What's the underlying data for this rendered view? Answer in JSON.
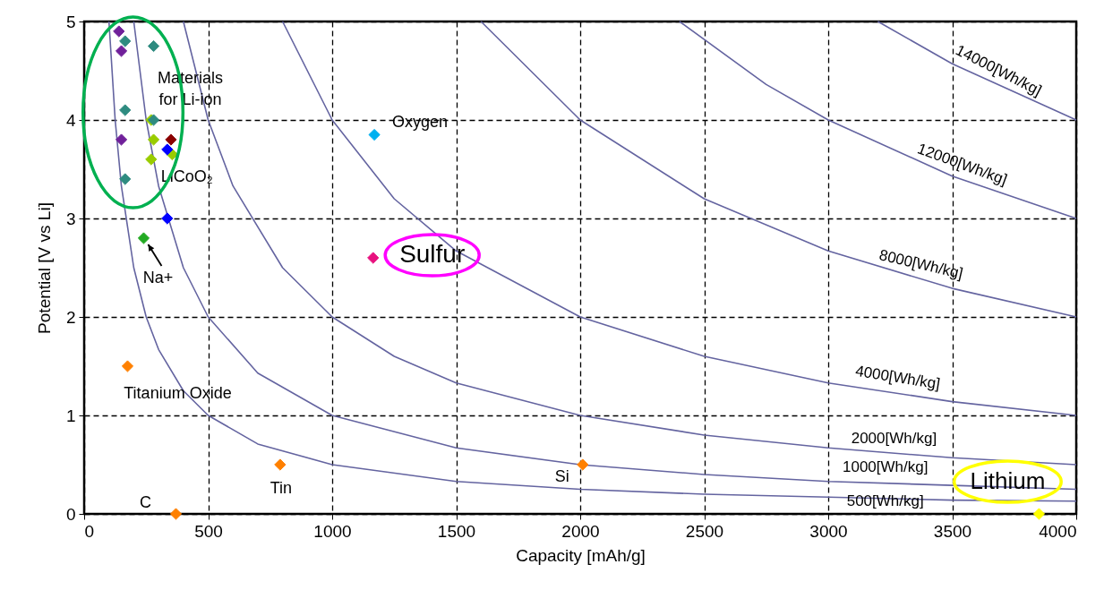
{
  "chart_data": {
    "type": "scatter",
    "xlabel": "Capacity [mAh/g]",
    "ylabel": "Potential [V vs Li]",
    "xlim": [
      0,
      4000
    ],
    "ylim": [
      0,
      5
    ],
    "xticks": [
      0,
      500,
      1000,
      1500,
      2000,
      2500,
      3000,
      3500,
      4000
    ],
    "yticks": [
      0,
      1,
      2,
      3,
      4,
      5
    ],
    "grid": true,
    "marker": "diamond",
    "series": [
      {
        "type": "line",
        "marker": "none",
        "color": "#6464a0",
        "x": [
          100,
          125,
          150,
          200,
          250,
          300,
          400,
          500,
          700,
          1000,
          1500,
          2000,
          2500,
          3000,
          3500,
          4000
        ],
        "values": [
          5,
          4,
          3.33,
          2.5,
          2,
          1.67,
          1.25,
          1,
          0.71,
          0.5,
          0.33,
          0.25,
          0.2,
          0.17,
          0.14,
          0.13
        ]
      },
      {
        "type": "line",
        "marker": "none",
        "color": "#6464a0",
        "x": [
          200,
          250,
          300,
          400,
          500,
          700,
          1000,
          1500,
          2000,
          2500,
          3000,
          3500,
          4000
        ],
        "values": [
          5,
          4,
          3.33,
          2.5,
          2,
          1.43,
          1,
          0.67,
          0.5,
          0.4,
          0.33,
          0.29,
          0.25
        ]
      },
      {
        "type": "line",
        "marker": "none",
        "color": "#6464a0",
        "x": [
          400,
          500,
          600,
          800,
          1000,
          1250,
          1500,
          2000,
          2500,
          3000,
          3500,
          4000
        ],
        "values": [
          5,
          4,
          3.33,
          2.5,
          2,
          1.6,
          1.33,
          1,
          0.8,
          0.67,
          0.57,
          0.5
        ]
      },
      {
        "type": "line",
        "marker": "none",
        "color": "#6464a0",
        "x": [
          800,
          1000,
          1250,
          1500,
          2000,
          2500,
          3000,
          3500,
          4000
        ],
        "values": [
          5,
          4,
          3.2,
          2.67,
          2,
          1.6,
          1.33,
          1.14,
          1
        ]
      },
      {
        "type": "line",
        "marker": "none",
        "color": "#6464a0",
        "x": [
          1600,
          2000,
          2500,
          3000,
          3500,
          4000
        ],
        "values": [
          5,
          4,
          3.2,
          2.67,
          2.29,
          2
        ]
      },
      {
        "type": "line",
        "marker": "none",
        "color": "#6464a0",
        "x": [
          2400,
          2750,
          3000,
          3500,
          4000
        ],
        "values": [
          5,
          4.36,
          4,
          3.43,
          3
        ]
      },
      {
        "type": "line",
        "marker": "none",
        "color": "#6464a0",
        "x": [
          3200,
          3500,
          4000
        ],
        "values": [
          5,
          4.57,
          4
        ]
      },
      {
        "color": "#70209a",
        "x": [
          140,
          150,
          150
        ],
        "values": [
          4.9,
          4.7,
          3.8
        ]
      },
      {
        "color": "#99cc00",
        "x": [
          270,
          280,
          270,
          355
        ],
        "values": [
          4.0,
          3.8,
          3.6,
          3.65
        ]
      },
      {
        "color": "#2e8b80",
        "x": [
          165,
          280,
          165,
          280,
          165
        ],
        "values": [
          4.8,
          4.75,
          4.1,
          4.0,
          3.4
        ]
      },
      {
        "color": "#8b0000",
        "x": [
          350
        ],
        "values": [
          3.8
        ]
      },
      {
        "color": "#0000ff",
        "x": [
          335,
          335
        ],
        "values": [
          3.7,
          3.0
        ]
      },
      {
        "color": "#22aa22",
        "x": [
          240
        ],
        "values": [
          2.8
        ]
      },
      {
        "color": "#ff8000",
        "x": [
          175,
          790,
          370,
          2010
        ],
        "values": [
          1.5,
          0.5,
          0,
          0.5
        ]
      },
      {
        "color": "#00b0f0",
        "x": [
          1170
        ],
        "values": [
          3.85
        ]
      },
      {
        "color": "#e8117f",
        "x": [
          1165
        ],
        "values": [
          2.6
        ]
      },
      {
        "color": "#ffff00",
        "x": [
          3850
        ],
        "values": [
          0
        ]
      }
    ],
    "annotations": [
      "Materials\nfor Li-ion",
      {
        "text": "LiCoO₂",
        "x": 270,
        "y": 3.6
      },
      {
        "text": "Na+",
        "x": 240,
        "y": 2.8
      },
      {
        "text": "Oxygen",
        "x": 1170,
        "y": 3.85
      },
      {
        "text": "Sulfur",
        "x": 1165,
        "y": 2.6
      },
      {
        "text": "Titanium Oxide",
        "x": 175,
        "y": 1.5
      },
      {
        "text": "Tin",
        "x": 790,
        "y": 0.5
      },
      {
        "text": "C",
        "x": 370,
        "y": 0
      },
      {
        "text": "Si",
        "x": 2010,
        "y": 0.5
      },
      {
        "text": "Lithium",
        "x": 3850,
        "y": 0
      },
      {
        "text": "14000[Wh/kg]",
        "x": 3660,
        "y": 4.37
      },
      {
        "text": "12000[Wh/kg]",
        "x": 3520,
        "y": 3.41
      },
      {
        "text": "8000[Wh/kg]",
        "x": 3360,
        "y": 2.38
      },
      {
        "text": "4000[Wh/kg]",
        "x": 3270,
        "y": 1.22
      },
      {
        "text": "2000[Wh/kg]",
        "x": 3265,
        "y": 0.61
      },
      {
        "text": "1000[Wh/kg]",
        "x": 3230,
        "y": 0.31
      },
      {
        "text": "500[Wh/kg]",
        "x": 3230,
        "y": 0.15
      }
    ]
  }
}
